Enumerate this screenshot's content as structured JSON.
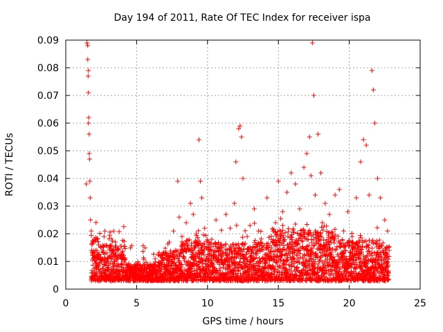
{
  "chart_data": {
    "type": "scatter",
    "title": "Day 194 of 2011, Rate Of TEC Index for receiver ispa",
    "xlabel": "GPS time / hours",
    "ylabel": "ROTI / TECUs",
    "xlim": [
      0,
      25
    ],
    "ylim": [
      0,
      0.09
    ],
    "x_ticks": [
      "0",
      "5",
      "10",
      "15",
      "20",
      "25"
    ],
    "y_ticks": [
      "0",
      "0.01",
      "0.02",
      "0.03",
      "0.04",
      "0.05",
      "0.06",
      "0.07",
      "0.08",
      "0.09"
    ],
    "grid": true,
    "marker": "+",
    "colors": {
      "points": "#ff0000",
      "grid": "#a0a0a0",
      "axes": "#000000"
    },
    "series": [
      {
        "values_x": [
          1.5,
          1.55,
          1.6,
          1.6,
          1.62,
          1.65,
          1.65,
          1.68,
          1.7,
          1.72,
          1.75,
          1.55,
          1.58,
          1.6,
          1.45,
          1.8,
          1.85,
          1.9,
          2.0,
          2.1,
          2.2,
          2.3,
          2.5,
          2.7,
          2.9,
          3.0,
          3.2,
          3.4,
          3.5,
          3.7,
          3.9,
          4.0,
          4.2,
          4.5,
          4.8,
          5.0,
          5.2,
          5.5,
          5.8,
          6.0,
          6.3,
          6.6,
          7.0,
          7.3,
          7.6,
          7.9,
          8.0,
          8.2,
          8.5,
          8.8,
          9.0,
          9.2,
          9.4,
          9.5,
          9.6,
          9.8,
          10.0,
          10.3,
          10.6,
          11.0,
          11.3,
          11.6,
          11.9,
          12.0,
          12.2,
          12.3,
          12.4,
          12.5,
          12.8,
          13.0,
          13.3,
          13.6,
          13.9,
          14.2,
          14.5,
          14.8,
          15.0,
          15.3,
          15.6,
          15.9,
          16.2,
          16.5,
          16.8,
          17.0,
          17.2,
          17.3,
          17.4,
          17.5,
          17.6,
          17.8,
          18.0,
          18.3,
          18.6,
          19.0,
          19.3,
          19.6,
          19.9,
          20.2,
          20.5,
          20.8,
          21.0,
          21.2,
          21.4,
          21.6,
          21.7,
          21.8,
          22.0,
          22.2,
          22.5,
          22.7
        ],
        "values_y": [
          0.089,
          0.083,
          0.079,
          0.071,
          0.062,
          0.056,
          0.049,
          0.047,
          0.039,
          0.033,
          0.025,
          0.088,
          0.077,
          0.06,
          0.038,
          0.021,
          0.016,
          0.013,
          0.018,
          0.014,
          0.011,
          0.012,
          0.015,
          0.019,
          0.013,
          0.01,
          0.016,
          0.014,
          0.017,
          0.012,
          0.009,
          0.011,
          0.007,
          0.008,
          0.006,
          0.005,
          0.007,
          0.004,
          0.006,
          0.009,
          0.011,
          0.008,
          0.013,
          0.017,
          0.021,
          0.039,
          0.026,
          0.019,
          0.024,
          0.031,
          0.027,
          0.02,
          0.054,
          0.039,
          0.033,
          0.022,
          0.015,
          0.018,
          0.025,
          0.012,
          0.027,
          0.022,
          0.031,
          0.046,
          0.058,
          0.059,
          0.055,
          0.04,
          0.019,
          0.023,
          0.029,
          0.021,
          0.015,
          0.033,
          0.018,
          0.024,
          0.039,
          0.028,
          0.035,
          0.042,
          0.038,
          0.029,
          0.044,
          0.049,
          0.055,
          0.041,
          0.089,
          0.07,
          0.034,
          0.056,
          0.042,
          0.031,
          0.027,
          0.034,
          0.036,
          0.021,
          0.028,
          0.019,
          0.033,
          0.046,
          0.054,
          0.052,
          0.034,
          0.079,
          0.072,
          0.06,
          0.04,
          0.033,
          0.025,
          0.021
        ],
        "note_dense_band": "dense cloud of points between 0.003 and 0.02 TECUs from 1.8 to 22.8 hours"
      }
    ]
  }
}
